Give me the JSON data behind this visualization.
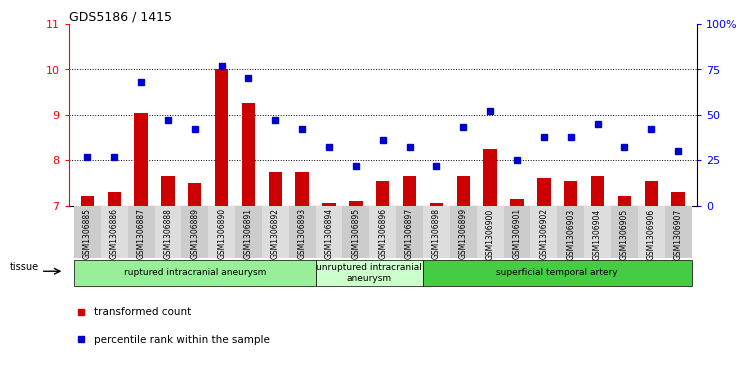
{
  "title": "GDS5186 / 1415",
  "samples": [
    "GSM1306885",
    "GSM1306886",
    "GSM1306887",
    "GSM1306888",
    "GSM1306889",
    "GSM1306890",
    "GSM1306891",
    "GSM1306892",
    "GSM1306893",
    "GSM1306894",
    "GSM1306895",
    "GSM1306896",
    "GSM1306897",
    "GSM1306898",
    "GSM1306899",
    "GSM1306900",
    "GSM1306901",
    "GSM1306902",
    "GSM1306903",
    "GSM1306904",
    "GSM1306905",
    "GSM1306906",
    "GSM1306907"
  ],
  "bar_values": [
    7.2,
    7.3,
    9.05,
    7.65,
    7.5,
    10.02,
    9.25,
    7.75,
    7.75,
    7.05,
    7.1,
    7.55,
    7.65,
    7.05,
    7.65,
    8.25,
    7.15,
    7.6,
    7.55,
    7.65,
    7.2,
    7.55,
    7.3
  ],
  "dot_values": [
    27,
    27,
    68,
    47,
    42,
    77,
    70,
    47,
    42,
    32,
    22,
    36,
    32,
    22,
    43,
    52,
    25,
    38,
    38,
    45,
    32,
    42,
    30
  ],
  "bar_color": "#cc0000",
  "dot_color": "#0000cc",
  "ylim_left": [
    7,
    11
  ],
  "ylim_right": [
    0,
    100
  ],
  "yticks_left": [
    7,
    8,
    9,
    10,
    11
  ],
  "yticks_right": [
    0,
    25,
    50,
    75,
    100
  ],
  "ytick_labels_right": [
    "0",
    "25",
    "50",
    "75",
    "100%"
  ],
  "grid_values": [
    8,
    9,
    10
  ],
  "group_boundaries": [
    {
      "start": 0,
      "end": 8,
      "label": "ruptured intracranial aneurysm",
      "color": "#99ee99"
    },
    {
      "start": 9,
      "end": 12,
      "label": "unruptured intracranial\naneurysm",
      "color": "#ccffcc"
    },
    {
      "start": 13,
      "end": 22,
      "label": "superficial temporal artery",
      "color": "#44cc44"
    }
  ],
  "legend_items": [
    {
      "label": "transformed count",
      "color": "#cc0000"
    },
    {
      "label": "percentile rank within the sample",
      "color": "#0000cc"
    }
  ],
  "tissue_label": "tissue"
}
